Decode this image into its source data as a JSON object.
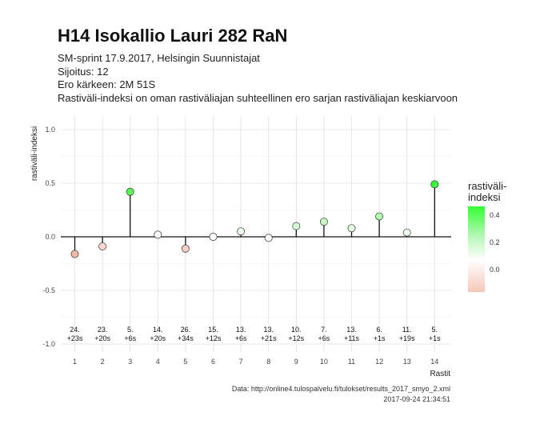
{
  "title": "H14 Isokallio Lauri 282 RaN",
  "subtitle_lines": [
    "SM-sprint 17.9.2017, Helsingin Suunnistajat",
    "Sijoitus: 12",
    "Ero kärkeen: 2M 51S",
    "Rastiväli-indeksi on oman rastiväliajan suhteellinen ero sarjan rastiväliajan keskiarvoon"
  ],
  "caption_source": "Data: http://online4.tulospalvelu.fi/tulokset/results_2017_smyo_2.xml",
  "caption_time": "2017-09-24 21:34:51",
  "legend": {
    "title_line1": "rastiväli-",
    "title_line2": "indeksi",
    "ticks": [
      "0.4",
      "0.2",
      "0.0"
    ]
  },
  "colors": {
    "positive": "#33ff33",
    "neutral": "#ffffff",
    "negative": "#f4b8a6",
    "grid": "#e2e2e2",
    "background": "#ffffff"
  },
  "chart_data": {
    "type": "lollipop",
    "xlabel": "Rastit",
    "ylabel": "rastiväli-indeksi",
    "ylim": [
      -1.0,
      1.0
    ],
    "yticks": [
      "1.0",
      "0.5",
      "0.0",
      "-0.5",
      "-1.0"
    ],
    "x": [
      1,
      2,
      3,
      4,
      5,
      6,
      7,
      8,
      9,
      10,
      11,
      12,
      13,
      14
    ],
    "xticks": [
      "1",
      "2",
      "3",
      "4",
      "5",
      "6",
      "7",
      "8",
      "9",
      "10",
      "11",
      "12",
      "13",
      "14"
    ],
    "values": [
      -0.16,
      -0.09,
      0.42,
      0.02,
      -0.11,
      0.0,
      0.05,
      -0.01,
      0.1,
      0.14,
      0.08,
      0.19,
      0.04,
      0.49
    ],
    "rank_labels": [
      "24.",
      "23.",
      "5.",
      "14.",
      "26.",
      "15.",
      "13.",
      "13.",
      "10.",
      "7.",
      "13.",
      "6.",
      "11.",
      "5."
    ],
    "diff_labels": [
      "+23s",
      "+20s",
      "+6s",
      "+20s",
      "+34s",
      "+12s",
      "+6s",
      "+21s",
      "+12s",
      "+6s",
      "+11s",
      "+1s",
      "+19s",
      "+1s"
    ]
  }
}
